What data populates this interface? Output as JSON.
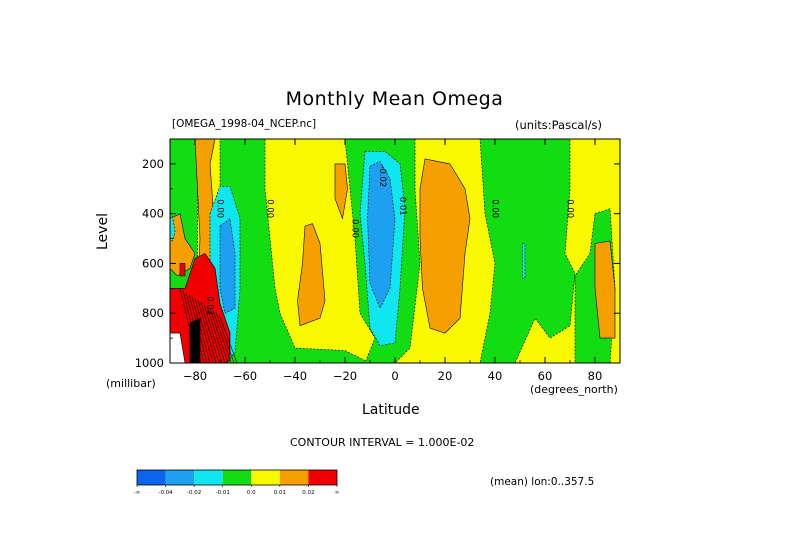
{
  "chart_data": {
    "type": "filled-contour",
    "title": "Monthly Mean Omega",
    "dataset_label": "[OMEGA_1998-04_NCEP.nc]",
    "units_label": "(units:Pascal/s)",
    "xlabel": "Latitude",
    "x_unit_label": "(degrees_north)",
    "ylabel": "Level",
    "y_unit_label": "(millibar)",
    "xlim": [
      -90,
      90
    ],
    "ylim": [
      1000,
      100
    ],
    "x_ticks": [
      -80,
      -60,
      -40,
      -20,
      0,
      20,
      40,
      60,
      80
    ],
    "y_ticks": [
      200,
      400,
      600,
      800,
      1000
    ],
    "contour_interval_text": "CONTOUR INTERVAL = 1.000E-02",
    "footer_text": "(mean) lon:0..357.5",
    "colorbar": {
      "colors": [
        "#0a64f0",
        "#1ea0f0",
        "#10e6f0",
        "#12dc12",
        "#f8f800",
        "#f5a000",
        "#f00000"
      ],
      "labels": [
        "-∞",
        "-0.04",
        "-0.02",
        "-0.01",
        "0.0",
        "0.01",
        "0.02",
        "∞"
      ]
    },
    "contour_labels": [
      "0.00",
      "0.00",
      "0.00",
      "-0.02",
      "0.01",
      "0.00",
      "0.00",
      "0.02"
    ],
    "regions": [
      {
        "level": "0.0",
        "color": "#f8f800",
        "points": [
          [
            -90,
            100
          ],
          [
            90,
            100
          ],
          [
            90,
            1000
          ],
          [
            -90,
            1000
          ]
        ]
      },
      {
        "level": "-0.01",
        "color": "#12dc12",
        "points": [
          [
            -90,
            100
          ],
          [
            -79,
            100
          ],
          [
            -79,
            700
          ],
          [
            -88,
            700
          ],
          [
            -90,
            750
          ]
        ]
      },
      {
        "level": "-0.01",
        "color": "#12dc12",
        "points": [
          [
            -70,
            100
          ],
          [
            -52,
            100
          ],
          [
            -52,
            300
          ],
          [
            -48,
            700
          ],
          [
            -46,
            800
          ],
          [
            -40,
            940
          ],
          [
            -30,
            945
          ],
          [
            -20,
            950
          ],
          [
            -12,
            990
          ],
          [
            -12,
            1000
          ],
          [
            -68,
            1000
          ],
          [
            -70,
            700
          ]
        ]
      },
      {
        "level": "-0.01",
        "color": "#12dc12",
        "points": [
          [
            -20,
            100
          ],
          [
            -2,
            100
          ],
          [
            8,
            100
          ],
          [
            8,
            300
          ],
          [
            10,
            600
          ],
          [
            6,
            940
          ],
          [
            0,
            1000
          ],
          [
            -12,
            1000
          ],
          [
            -8,
            900
          ],
          [
            -14,
            800
          ],
          [
            -16,
            500
          ],
          [
            -18,
            300
          ]
        ]
      },
      {
        "level": "-0.01",
        "color": "#12dc12",
        "points": [
          [
            34,
            100
          ],
          [
            70,
            100
          ],
          [
            70,
            300
          ],
          [
            68,
            560
          ],
          [
            72,
            640
          ],
          [
            70,
            850
          ],
          [
            62,
            900
          ],
          [
            56,
            820
          ],
          [
            48,
            1000
          ],
          [
            34,
            1000
          ],
          [
            38,
            800
          ],
          [
            40,
            600
          ],
          [
            36,
            400
          ]
        ]
      },
      {
        "level": "-0.01",
        "color": "#12dc12",
        "points": [
          [
            80,
            400
          ],
          [
            86,
            380
          ],
          [
            88,
            700
          ],
          [
            86,
            1000
          ],
          [
            72,
            1000
          ],
          [
            72,
            650
          ],
          [
            78,
            560
          ]
        ]
      },
      {
        "level": "0.01",
        "color": "#f5a000",
        "points": [
          [
            -90,
            420
          ],
          [
            -86,
            400
          ],
          [
            -84,
            500
          ],
          [
            -80,
            560
          ],
          [
            -82,
            620
          ],
          [
            -87,
            650
          ],
          [
            -90,
            620
          ]
        ]
      },
      {
        "level": "0.01",
        "color": "#f5a000",
        "points": [
          [
            -80,
            100
          ],
          [
            -72,
            100
          ],
          [
            -74,
            200
          ],
          [
            -73,
            340
          ],
          [
            -71,
            700
          ],
          [
            -73,
            800
          ],
          [
            -77,
            760
          ],
          [
            -79,
            720
          ],
          [
            -78,
            500
          ]
        ]
      },
      {
        "level": "0.01",
        "color": "#f5a000",
        "points": [
          [
            -36,
            450
          ],
          [
            -33,
            440
          ],
          [
            -30,
            520
          ],
          [
            -28,
            750
          ],
          [
            -30,
            820
          ],
          [
            -38,
            850
          ],
          [
            -39,
            750
          ],
          [
            -37,
            600
          ]
        ]
      },
      {
        "level": "0.01",
        "color": "#f5a000",
        "points": [
          [
            -24,
            200
          ],
          [
            -20,
            200
          ],
          [
            -19,
            300
          ],
          [
            -21,
            420
          ],
          [
            -24,
            340
          ]
        ]
      },
      {
        "level": "0.01",
        "color": "#f5a000",
        "points": [
          [
            12,
            180
          ],
          [
            22,
            200
          ],
          [
            28,
            300
          ],
          [
            30,
            420
          ],
          [
            28,
            560
          ],
          [
            26,
            820
          ],
          [
            20,
            880
          ],
          [
            14,
            860
          ],
          [
            11,
            700
          ],
          [
            10,
            500
          ],
          [
            10,
            300
          ]
        ]
      },
      {
        "level": "0.01",
        "color": "#f5a000",
        "points": [
          [
            80,
            520
          ],
          [
            86,
            510
          ],
          [
            88,
            700
          ],
          [
            88,
            900
          ],
          [
            82,
            900
          ],
          [
            80,
            700
          ]
        ]
      },
      {
        "level": "-0.02",
        "color": "#10e6f0",
        "points": [
          [
            -74,
            400
          ],
          [
            -70,
            290
          ],
          [
            -66,
            290
          ],
          [
            -62,
            420
          ],
          [
            -62,
            700
          ],
          [
            -64,
            960
          ],
          [
            -68,
            1000
          ],
          [
            -74,
            1000
          ],
          [
            -74,
            700
          ]
        ]
      },
      {
        "level": "-0.02",
        "color": "#10e6f0",
        "points": [
          [
            -12,
            150
          ],
          [
            -4,
            150
          ],
          [
            2,
            200
          ],
          [
            4,
            380
          ],
          [
            2,
            700
          ],
          [
            0,
            920
          ],
          [
            -6,
            930
          ],
          [
            -10,
            860
          ],
          [
            -12,
            600
          ],
          [
            -14,
            400
          ]
        ]
      },
      {
        "level": "-0.02",
        "color": "#10e6f0",
        "points": [
          [
            -90,
            420
          ],
          [
            -89,
            410
          ],
          [
            -88,
            470
          ],
          [
            -89,
            510
          ],
          [
            -90,
            500
          ]
        ]
      },
      {
        "level": "-0.02",
        "color": "#10e6f0",
        "points": [
          [
            51,
            520
          ],
          [
            52,
            520
          ],
          [
            52,
            660
          ],
          [
            51,
            660
          ]
        ]
      },
      {
        "level": "-0.04",
        "color": "#1ea0f0",
        "points": [
          [
            -70,
            450
          ],
          [
            -66,
            420
          ],
          [
            -64,
            560
          ],
          [
            -64,
            780
          ],
          [
            -68,
            800
          ],
          [
            -70,
            700
          ]
        ]
      },
      {
        "level": "-0.04",
        "color": "#1ea0f0",
        "points": [
          [
            -10,
            210
          ],
          [
            -6,
            190
          ],
          [
            -2,
            260
          ],
          [
            0,
            420
          ],
          [
            -2,
            700
          ],
          [
            -6,
            780
          ],
          [
            -10,
            680
          ],
          [
            -11,
            420
          ]
        ]
      },
      {
        "level": "0.02",
        "color": "#f00000",
        "points": [
          [
            -90,
            700
          ],
          [
            -84,
            700
          ],
          [
            -80,
            580
          ],
          [
            -76,
            560
          ],
          [
            -72,
            620
          ],
          [
            -70,
            760
          ],
          [
            -66,
            880
          ],
          [
            -66,
            990
          ],
          [
            -68,
            1000
          ],
          [
            -90,
            1000
          ]
        ]
      },
      {
        "level": "0.02",
        "color": "#f00000",
        "points": [
          [
            -86,
            600
          ],
          [
            -84,
            600
          ],
          [
            -84,
            650
          ],
          [
            -86,
            650
          ]
        ]
      },
      {
        "level": "∞",
        "color": "#000000",
        "points": [
          [
            -82,
            840
          ],
          [
            -78,
            820
          ],
          [
            -78,
            1000
          ],
          [
            -82,
            1000
          ]
        ]
      },
      {
        "level": "∞",
        "color": "#ffffff",
        "points": [
          [
            -90,
            880
          ],
          [
            -86,
            880
          ],
          [
            -84,
            1000
          ],
          [
            -90,
            1000
          ]
        ]
      }
    ]
  }
}
